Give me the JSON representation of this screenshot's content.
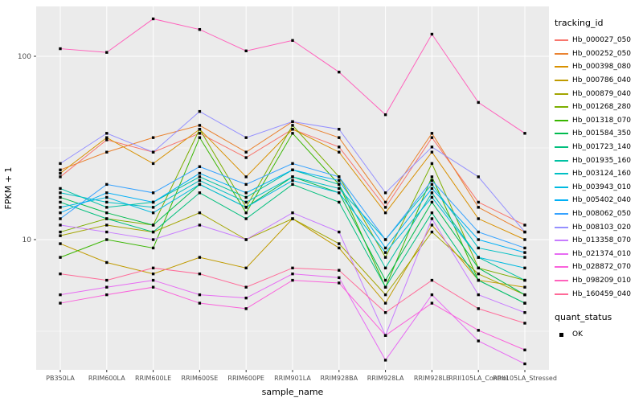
{
  "chart_data": {
    "type": "line",
    "title": "",
    "xlabel": "sample_name",
    "ylabel": "FPKM + 1",
    "y_scale": "log10",
    "y_ticks": [
      100,
      10
    ],
    "y_minor_gridlines": [
      31.62,
      3.162
    ],
    "ylim": [
      1.9,
      200
    ],
    "panel_bg": "#EBEBEB",
    "grid_color": "#FFFFFF",
    "axis_text_color": "#4D4D4D",
    "categories": [
      "PB350LA",
      "RRIM600LA",
      "RRIM600LE",
      "RRIM600SE",
      "RRIM600PE",
      "RRIM901LA",
      "RRIM928BA",
      "RRIM928LA",
      "RRIM928LE",
      "RRII105LA_Control",
      "RRII105LA_Stressed"
    ],
    "series": [
      {
        "name": "Hb_000027_050",
        "color": "#F8766D",
        "values": [
          22,
          35,
          30,
          38,
          28,
          40,
          32,
          15,
          36,
          16,
          12
        ]
      },
      {
        "name": "Hb_000252_050",
        "color": "#EA8331",
        "values": [
          24,
          30,
          36,
          42,
          30,
          44,
          36,
          16,
          38,
          15,
          11
        ]
      },
      {
        "name": "Hb_000398_080",
        "color": "#D89000",
        "values": [
          23,
          36,
          26,
          40,
          22,
          40,
          30,
          14,
          30,
          13,
          10
        ]
      },
      {
        "name": "Hb_000786_040",
        "color": "#C09B00",
        "values": [
          9.5,
          7.5,
          6.5,
          8,
          7,
          13,
          9,
          4.5,
          12,
          6,
          5.5
        ]
      },
      {
        "name": "Hb_000879_040",
        "color": "#A3A500",
        "values": [
          10.5,
          12,
          11,
          14,
          10,
          13,
          9.5,
          5,
          11,
          6.5,
          5
        ]
      },
      {
        "name": "Hb_001268_280",
        "color": "#7CAE00",
        "values": [
          11,
          13,
          12,
          40,
          15,
          42,
          22,
          8,
          26,
          7,
          6
        ]
      },
      {
        "name": "Hb_001318_070",
        "color": "#39B600",
        "values": [
          8,
          10,
          9,
          36,
          14,
          38,
          20,
          5.5,
          22,
          6,
          4.5
        ]
      },
      {
        "name": "Hb_001584_350",
        "color": "#00BB4E",
        "values": [
          17,
          14,
          12,
          20,
          15,
          22,
          18,
          6,
          16,
          7,
          5
        ]
      },
      {
        "name": "Hb_001723_140",
        "color": "#00BF7D",
        "values": [
          16,
          13,
          11,
          18,
          13,
          20,
          16,
          5.5,
          14,
          6,
          4.5
        ]
      },
      {
        "name": "Hb_001935_160",
        "color": "#00C1A3",
        "values": [
          19,
          15,
          16,
          22,
          17,
          24,
          20,
          7,
          18,
          8,
          6
        ]
      },
      {
        "name": "Hb_003124_160",
        "color": "#00BFC4",
        "values": [
          18,
          16,
          15,
          21,
          16,
          22,
          19,
          10,
          20,
          9,
          8
        ]
      },
      {
        "name": "Hb_003943_010",
        "color": "#00BAE0",
        "values": [
          15,
          17,
          14,
          20,
          15,
          21,
          18,
          8.5,
          17,
          8,
          7
        ]
      },
      {
        "name": "Hb_005402_040",
        "color": "#00B0F6",
        "values": [
          14,
          18,
          16,
          23,
          18,
          24,
          21,
          9,
          19,
          10,
          8.5
        ]
      },
      {
        "name": "Hb_008062_050",
        "color": "#35A2FF",
        "values": [
          13,
          20,
          18,
          25,
          20,
          26,
          22,
          10,
          21,
          11,
          9
        ]
      },
      {
        "name": "Hb_008103_020",
        "color": "#9590FF",
        "values": [
          26,
          38,
          30,
          50,
          36,
          44,
          40,
          18,
          32,
          22,
          11
        ]
      },
      {
        "name": "Hb_013358_070",
        "color": "#C77CFF",
        "values": [
          12,
          11,
          10,
          12,
          10,
          14,
          11,
          3,
          13,
          5,
          4
        ]
      },
      {
        "name": "Hb_021374_010",
        "color": "#E76BF3",
        "values": [
          5,
          5.5,
          6,
          5,
          4.8,
          6.5,
          6.2,
          2.2,
          5,
          2.8,
          2.1
        ]
      },
      {
        "name": "Hb_028872_070",
        "color": "#FA62DB",
        "values": [
          4.5,
          5,
          5.5,
          4.5,
          4.2,
          6,
          5.8,
          3,
          4.5,
          3.2,
          2.5
        ]
      },
      {
        "name": "Hb_098209_010",
        "color": "#FF62BC",
        "values": [
          110,
          105,
          160,
          140,
          107,
          122,
          82,
          48,
          132,
          56,
          38
        ]
      },
      {
        "name": "Hb_160459_040",
        "color": "#FF6A98",
        "values": [
          6.5,
          6,
          7,
          6.5,
          5.5,
          7,
          6.8,
          4,
          6,
          4.2,
          3.5
        ]
      }
    ],
    "points": {
      "color": "#000000",
      "shape": "square"
    },
    "legend": {
      "color_title": "tracking_id",
      "shape_title": "quant_status",
      "shape_items": [
        "OK"
      ]
    }
  }
}
